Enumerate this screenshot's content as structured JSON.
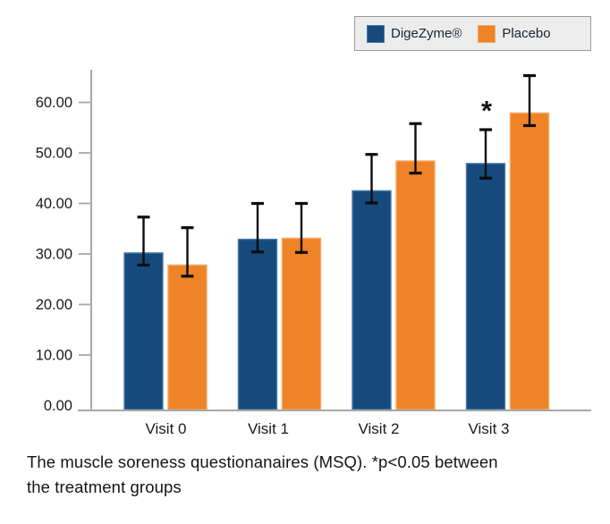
{
  "legend": {
    "items": [
      {
        "label": "DigeZyme®",
        "color": "#164A7D",
        "edge": "#4a7aab"
      },
      {
        "label": "Placebo",
        "color": "#EF8327",
        "edge": "#f4a964"
      }
    ]
  },
  "caption": {
    "line1": "The muscle soreness questionanaires (MSQ). *p<0.05 between",
    "line2": "the treatment groups"
  },
  "colors": {
    "digezyme": "#164A7D",
    "digezyme_edge": "#4a7aab",
    "placebo": "#EF8327",
    "placebo_edge": "#f4a964",
    "axis": "#a7a7a7",
    "error_bar": "#0d0d0d",
    "text": "#1a1a1a"
  },
  "chart_data": {
    "type": "bar",
    "title": "",
    "xlabel": "",
    "ylabel": "",
    "categories": [
      "Visit 0",
      "Visit 1",
      "Visit 2",
      "Visit 3"
    ],
    "series": [
      {
        "name": "DigeZyme®",
        "color": "#164A7D",
        "values": [
          30.2,
          32.9,
          42.5,
          47.9
        ],
        "err_high": [
          37.3,
          40.0,
          49.7,
          54.6
        ],
        "err_low": [
          27.8,
          30.4,
          40.1,
          45.0
        ]
      },
      {
        "name": "Placebo",
        "color": "#EF8327",
        "values": [
          27.8,
          33.1,
          48.4,
          57.9
        ],
        "err_high": [
          35.2,
          40.0,
          55.8,
          65.3
        ],
        "err_low": [
          25.6,
          30.3,
          46.0,
          55.4
        ]
      }
    ],
    "y_ticks": [
      0,
      10,
      20,
      30,
      40,
      50,
      60
    ],
    "y_tick_labels": [
      "0.00",
      "10.00",
      "20.00",
      "30.00",
      "40.00",
      "50.00",
      "60.00"
    ],
    "ylim": [
      0,
      67
    ],
    "grid": false,
    "error_bars": true,
    "legend_position": "top-right",
    "annotations": [
      {
        "text": "*",
        "category": "Visit 3",
        "series": "DigeZyme®",
        "meaning": "p<0.05 between treatment groups"
      }
    ]
  }
}
